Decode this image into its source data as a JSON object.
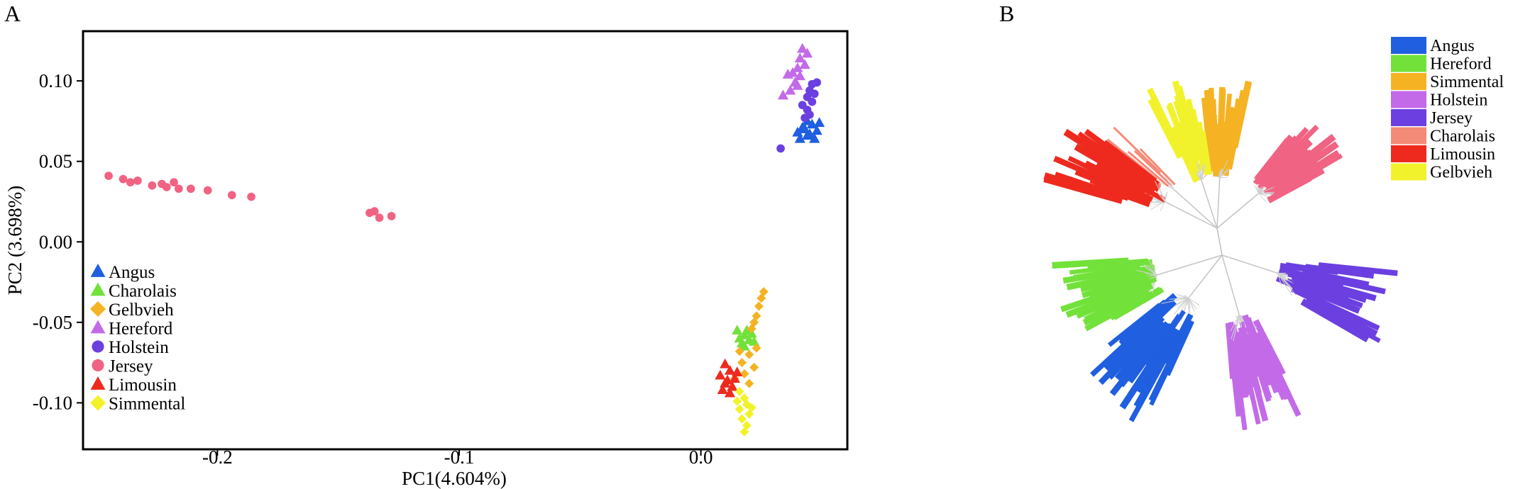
{
  "panel_a": {
    "letter": "A"
  },
  "panel_b": {
    "letter": "B"
  },
  "chart_data": [
    {
      "type": "scatter",
      "title": "",
      "xlabel": "PC1(4.604%)",
      "ylabel": "PC2 (3.698%)",
      "xlim": [
        -0.255,
        0.06
      ],
      "ylim": [
        -0.128,
        0.13
      ],
      "xticks": [
        {
          "v": -0.2,
          "label": "-0.2"
        },
        {
          "v": -0.1,
          "label": "-0.1"
        },
        {
          "v": 0.0,
          "label": "0.0"
        }
      ],
      "yticks": [
        {
          "v": 0.1,
          "label": "0.10"
        },
        {
          "v": 0.05,
          "label": "0.05"
        },
        {
          "v": 0.0,
          "label": "0.00"
        },
        {
          "v": -0.05,
          "label": "-0.05"
        },
        {
          "v": -0.1,
          "label": "-0.10"
        }
      ],
      "legend_position": "bottom-left",
      "series": [
        {
          "name": "Angus",
          "color": "#1f5fe0",
          "marker": "triangle",
          "points": [
            [
              0.04,
              0.068
            ],
            [
              0.042,
              0.071
            ],
            [
              0.044,
              0.066
            ],
            [
              0.046,
              0.073
            ],
            [
              0.048,
              0.069
            ],
            [
              0.044,
              0.075
            ],
            [
              0.047,
              0.064
            ],
            [
              0.041,
              0.064
            ],
            [
              0.043,
              0.07
            ],
            [
              0.049,
              0.074
            ],
            [
              0.045,
              0.067
            ]
          ]
        },
        {
          "name": "Charolais",
          "color": "#72e23a",
          "marker": "triangle",
          "points": [
            [
              0.015,
              -0.055
            ],
            [
              0.018,
              -0.058
            ],
            [
              0.02,
              -0.061
            ],
            [
              0.017,
              -0.063
            ],
            [
              0.021,
              -0.057
            ],
            [
              0.016,
              -0.06
            ],
            [
              0.019,
              -0.055
            ],
            [
              0.022,
              -0.062
            ],
            [
              0.018,
              -0.065
            ]
          ]
        },
        {
          "name": "Gelbvieh",
          "color": "#f5b323",
          "marker": "diamond",
          "points": [
            [
              0.026,
              -0.031
            ],
            [
              0.025,
              -0.035
            ],
            [
              0.024,
              -0.04
            ],
            [
              0.023,
              -0.046
            ],
            [
              0.022,
              -0.05
            ],
            [
              0.021,
              -0.054
            ],
            [
              0.02,
              -0.07
            ],
            [
              0.017,
              -0.075
            ],
            [
              0.022,
              -0.078
            ],
            [
              0.018,
              -0.082
            ],
            [
              0.014,
              -0.085
            ],
            [
              0.02,
              -0.088
            ],
            [
              0.023,
              -0.066
            ],
            [
              0.016,
              -0.068
            ]
          ]
        },
        {
          "name": "Hereford",
          "color": "#c36ae8",
          "marker": "triangle",
          "points": [
            [
              0.042,
              0.12
            ],
            [
              0.044,
              0.117
            ],
            [
              0.041,
              0.114
            ],
            [
              0.043,
              0.11
            ],
            [
              0.04,
              0.108
            ],
            [
              0.038,
              0.105
            ],
            [
              0.036,
              0.104
            ],
            [
              0.041,
              0.103
            ],
            [
              0.039,
              0.099
            ],
            [
              0.037,
              0.094
            ],
            [
              0.034,
              0.091
            ],
            [
              0.04,
              0.097
            ]
          ]
        },
        {
          "name": "Holstein",
          "color": "#6b3fe0",
          "marker": "circle",
          "points": [
            [
              0.046,
              0.098
            ],
            [
              0.048,
              0.099
            ],
            [
              0.045,
              0.094
            ],
            [
              0.044,
              0.09
            ],
            [
              0.046,
              0.087
            ],
            [
              0.042,
              0.085
            ],
            [
              0.044,
              0.082
            ],
            [
              0.045,
              0.079
            ],
            [
              0.043,
              0.077
            ],
            [
              0.047,
              0.092
            ],
            [
              0.033,
              0.058
            ]
          ]
        },
        {
          "name": "Jersey",
          "color": "#f06383",
          "marker": "circle",
          "points": [
            [
              -0.245,
              0.041
            ],
            [
              -0.239,
              0.039
            ],
            [
              -0.236,
              0.037
            ],
            [
              -0.233,
              0.038
            ],
            [
              -0.227,
              0.035
            ],
            [
              -0.223,
              0.036
            ],
            [
              -0.221,
              0.034
            ],
            [
              -0.218,
              0.037
            ],
            [
              -0.216,
              0.033
            ],
            [
              -0.211,
              0.033
            ],
            [
              -0.204,
              0.032
            ],
            [
              -0.194,
              0.029
            ],
            [
              -0.186,
              0.028
            ],
            [
              -0.137,
              0.018
            ],
            [
              -0.135,
              0.019
            ],
            [
              -0.133,
              0.015
            ],
            [
              -0.128,
              0.016
            ]
          ]
        },
        {
          "name": "Limousin",
          "color": "#ee2a1e",
          "marker": "triangle",
          "points": [
            [
              0.01,
              -0.076
            ],
            [
              0.012,
              -0.08
            ],
            [
              0.008,
              -0.083
            ],
            [
              0.014,
              -0.085
            ],
            [
              0.01,
              -0.088
            ],
            [
              0.013,
              -0.09
            ],
            [
              0.009,
              -0.092
            ],
            [
              0.015,
              -0.081
            ],
            [
              0.011,
              -0.086
            ],
            [
              0.012,
              -0.094
            ]
          ]
        },
        {
          "name": "Simmental",
          "color": "#f2f22c",
          "marker": "diamond",
          "points": [
            [
              0.016,
              -0.093
            ],
            [
              0.018,
              -0.097
            ],
            [
              0.019,
              -0.101
            ],
            [
              0.016,
              -0.104
            ],
            [
              0.02,
              -0.107
            ],
            [
              0.017,
              -0.11
            ],
            [
              0.019,
              -0.114
            ],
            [
              0.015,
              -0.099
            ],
            [
              0.021,
              -0.103
            ],
            [
              0.018,
              -0.118
            ]
          ]
        }
      ]
    },
    {
      "type": "tree",
      "title": "",
      "layout": "unrooted-radial",
      "legend_position": "top-right",
      "clusters": [
        {
          "name": "Angus",
          "color": "#1f5fe0",
          "angle": 128,
          "spread": 27,
          "count": 26,
          "rmin": 140,
          "rmax": 270
        },
        {
          "name": "Hereford",
          "color": "#72e23a",
          "angle": 163,
          "spread": 27,
          "count": 24,
          "rmin": 175,
          "rmax": 240
        },
        {
          "name": "Simmental",
          "color": "#f5b323",
          "angle": 273,
          "spread": 18,
          "count": 22,
          "rmin": 130,
          "rmax": 215
        },
        {
          "name": "Holstein",
          "color": "#c36ae8",
          "angle": 74,
          "spread": 22,
          "count": 24,
          "rmin": 160,
          "rmax": 260
        },
        {
          "name": "Jersey",
          "color": "#6b3fe0",
          "angle": 18,
          "spread": 24,
          "count": 20,
          "rmin": 150,
          "rmax": 265
        },
        {
          "name": "Charolais",
          "color": "#f48a78",
          "angle": 222,
          "spread": 8,
          "count": 6,
          "rmin": 150,
          "rmax": 205
        },
        {
          "name": "Limousin",
          "color": "#ee2a1e",
          "angle": 207,
          "spread": 22,
          "count": 20,
          "rmin": 150,
          "rmax": 255
        },
        {
          "name": "Gelbvieh",
          "color": "#f2f22c",
          "angle": 252,
          "spread": 18,
          "count": 22,
          "rmin": 130,
          "rmax": 220
        },
        {
          "name": "Jersey",
          "color": "#f06383",
          "angle": 320,
          "spread": 24,
          "count": 26,
          "rmin": 140,
          "rmax": 210
        }
      ],
      "legend": [
        {
          "name": "Angus",
          "color": "#1f5fe0"
        },
        {
          "name": "Hereford",
          "color": "#72e23a"
        },
        {
          "name": "Simmental",
          "color": "#f5b323"
        },
        {
          "name": "Holstein",
          "color": "#c36ae8"
        },
        {
          "name": "Jersey",
          "color": "#6b3fe0"
        },
        {
          "name": "Charolais",
          "color": "#f48a78"
        },
        {
          "name": "Limousin",
          "color": "#ee2a1e"
        },
        {
          "name": "Gelbvieh",
          "color": "#f2f22c"
        }
      ]
    }
  ]
}
